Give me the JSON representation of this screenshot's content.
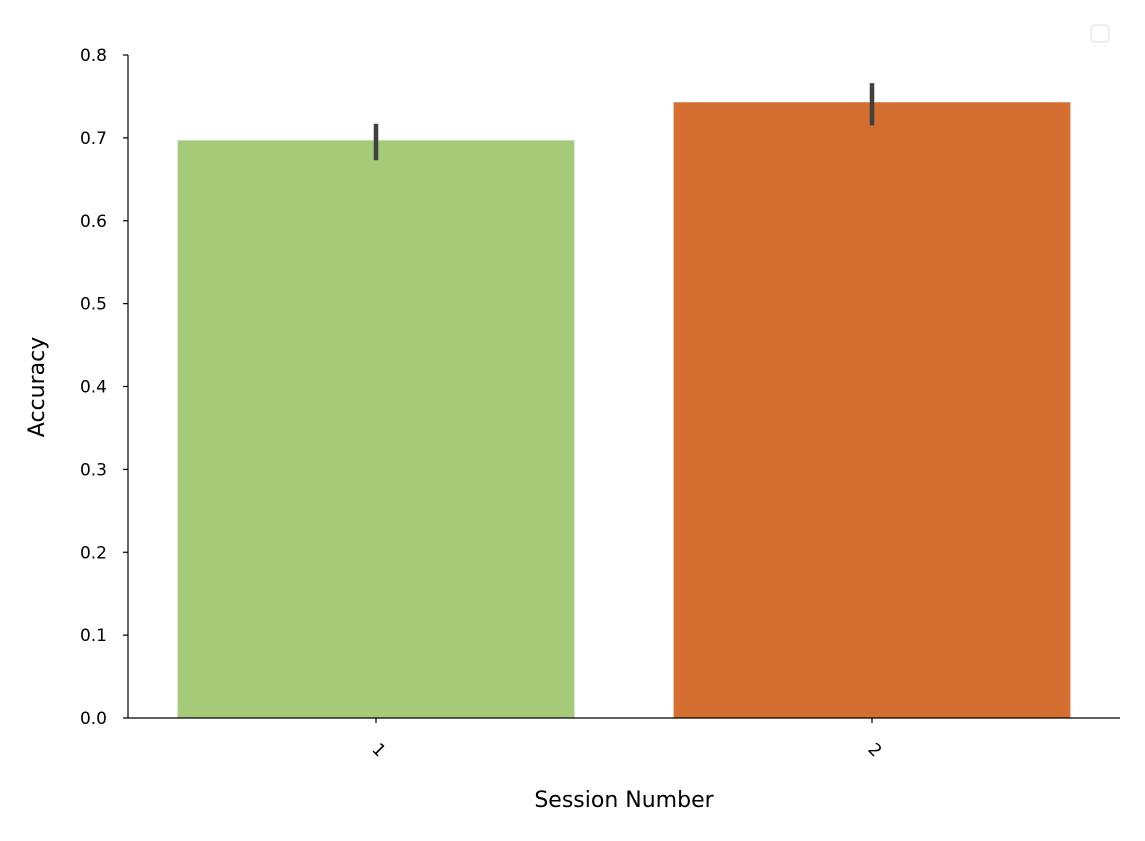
{
  "chart_data": {
    "type": "bar",
    "title": "",
    "xlabel": "Session Number",
    "ylabel": "Accuracy",
    "categories": [
      "1",
      "2"
    ],
    "values": [
      0.697,
      0.743
    ],
    "error_bars": [
      {
        "low": 0.673,
        "high": 0.717
      },
      {
        "low": 0.715,
        "high": 0.766
      }
    ],
    "colors": [
      "#a6cb78",
      "#d46e31"
    ],
    "error_color": "#404040",
    "ylim": [
      0,
      0.8
    ],
    "yticks": [
      "0.0",
      "0.1",
      "0.2",
      "0.3",
      "0.4",
      "0.5",
      "0.6",
      "0.7",
      "0.8"
    ],
    "ytick_values": [
      0,
      0.1,
      0.2,
      0.3,
      0.4,
      0.5,
      0.6,
      0.7,
      0.8
    ],
    "xtick_rotation": 45,
    "grid": false,
    "legend": {
      "placement": "top-right",
      "entries": []
    }
  }
}
